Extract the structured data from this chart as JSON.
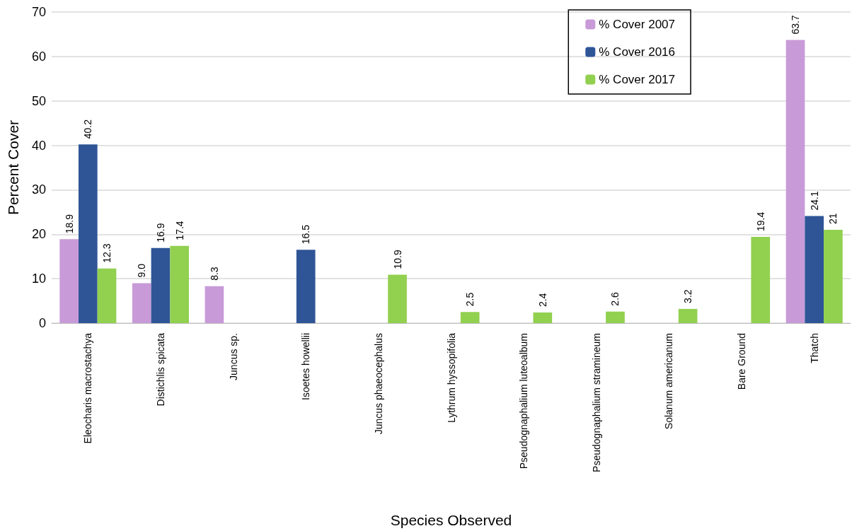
{
  "chart_data": {
    "type": "bar",
    "xlabel": "Species Observed",
    "ylabel": "Percent Cover",
    "categories": [
      "Eleocharis macrostachya",
      "Distichlis spicata",
      "Juncus sp.",
      "Isoetes howellii",
      "Juncus phaeocephalus",
      "Lythrum hyssopifolia",
      "Pseudognaphalium luteoalbum",
      "Pseudognaphalium stramineum",
      "Solanum americanum",
      "Bare Ground",
      "Thatch"
    ],
    "series": [
      {
        "name": "% Cover 2007",
        "color": "#c89bd8",
        "values": [
          18.9,
          9.0,
          8.3,
          null,
          null,
          null,
          null,
          null,
          null,
          null,
          63.7
        ],
        "value_labels": [
          "18.9",
          "9.0",
          "8.3",
          null,
          null,
          null,
          null,
          null,
          null,
          null,
          "63.7"
        ]
      },
      {
        "name": "% Cover 2016",
        "color": "#2f5597",
        "values": [
          40.2,
          16.9,
          null,
          16.5,
          null,
          null,
          null,
          null,
          null,
          null,
          24.1
        ],
        "value_labels": [
          "40.2",
          "16.9",
          null,
          "16.5",
          null,
          null,
          null,
          null,
          null,
          null,
          "24.1"
        ]
      },
      {
        "name": "% Cover 2017",
        "color": "#92d050",
        "values": [
          12.3,
          17.4,
          null,
          null,
          10.9,
          2.5,
          2.4,
          2.6,
          3.2,
          19.4,
          21
        ],
        "value_labels": [
          "12.3",
          "17.4",
          null,
          null,
          "10.9",
          "2.5",
          "2.4",
          "2.6",
          "3.2",
          "19.4",
          "21"
        ]
      }
    ],
    "ylim": [
      0,
      70
    ],
    "yticks": [
      0,
      10,
      20,
      30,
      40,
      50,
      60,
      70
    ],
    "grid": "y",
    "legend": "top right"
  }
}
